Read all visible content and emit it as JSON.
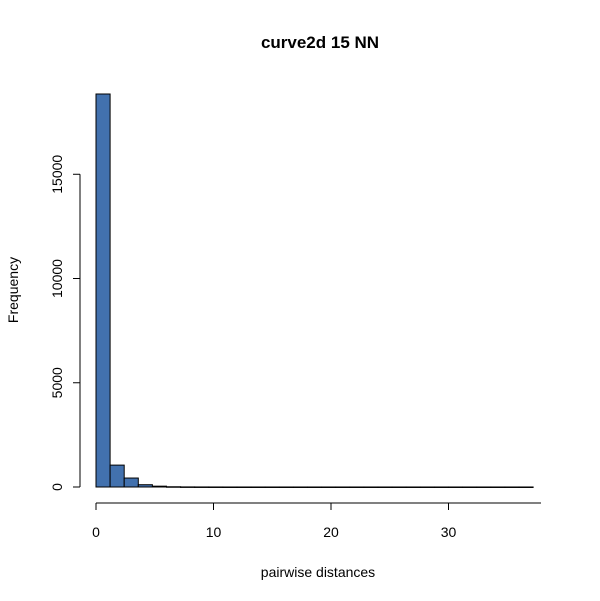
{
  "chart_data": {
    "type": "bar",
    "title": "curve2d 15 NN",
    "xlabel": "pairwise distances",
    "ylabel": "Frequency",
    "bar_color": "#4271AE",
    "bin_width": 1.2,
    "bins": [
      {
        "x0": 0.0,
        "x1": 1.2,
        "value": 18850
      },
      {
        "x0": 1.2,
        "x1": 2.4,
        "value": 1050
      },
      {
        "x0": 2.4,
        "x1": 3.6,
        "value": 430
      },
      {
        "x0": 3.6,
        "x1": 4.8,
        "value": 110
      },
      {
        "x0": 4.8,
        "x1": 6.0,
        "value": 40
      },
      {
        "x0": 6.0,
        "x1": 7.2,
        "value": 12
      },
      {
        "x0": 7.2,
        "x1": 8.4,
        "value": 5
      },
      {
        "x0": 8.4,
        "x1": 9.6,
        "value": 3
      },
      {
        "x0": 9.6,
        "x1": 10.8,
        "value": 2
      },
      {
        "x0": 10.8,
        "x1": 12.0,
        "value": 1
      },
      {
        "x0": 12.0,
        "x1": 13.2,
        "value": 1
      },
      {
        "x0": 13.2,
        "x1": 14.4,
        "value": 1
      },
      {
        "x0": 14.4,
        "x1": 15.6,
        "value": 1
      },
      {
        "x0": 15.6,
        "x1": 16.8,
        "value": 1
      },
      {
        "x0": 16.8,
        "x1": 18.0,
        "value": 1
      },
      {
        "x0": 18.0,
        "x1": 19.2,
        "value": 1
      },
      {
        "x0": 19.2,
        "x1": 20.4,
        "value": 1
      },
      {
        "x0": 20.4,
        "x1": 21.6,
        "value": 1
      },
      {
        "x0": 21.6,
        "x1": 22.8,
        "value": 1
      },
      {
        "x0": 22.8,
        "x1": 24.0,
        "value": 1
      },
      {
        "x0": 24.0,
        "x1": 25.2,
        "value": 1
      },
      {
        "x0": 25.2,
        "x1": 26.4,
        "value": 1
      },
      {
        "x0": 26.4,
        "x1": 27.6,
        "value": 1
      },
      {
        "x0": 27.6,
        "x1": 28.8,
        "value": 1
      },
      {
        "x0": 28.8,
        "x1": 30.0,
        "value": 1
      },
      {
        "x0": 30.0,
        "x1": 31.2,
        "value": 1
      },
      {
        "x0": 31.2,
        "x1": 32.4,
        "value": 1
      },
      {
        "x0": 32.4,
        "x1": 33.6,
        "value": 1
      },
      {
        "x0": 33.6,
        "x1": 34.8,
        "value": 1
      },
      {
        "x0": 34.8,
        "x1": 36.0,
        "value": 1
      },
      {
        "x0": 36.0,
        "x1": 37.2,
        "value": 1
      }
    ],
    "xlim": [
      0,
      37.2
    ],
    "ylim": [
      0,
      18850
    ],
    "x_ticks": [
      0,
      10,
      20,
      30
    ],
    "y_ticks": [
      0,
      5000,
      10000,
      15000
    ],
    "grid": false,
    "legend": "none"
  }
}
